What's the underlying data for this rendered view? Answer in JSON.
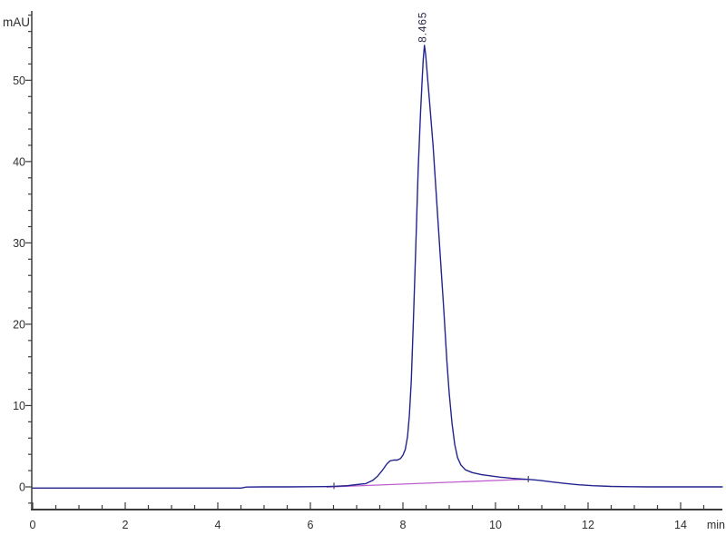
{
  "chart": {
    "y_unit": "mAU",
    "x_unit": "min"
  },
  "chart_data": {
    "type": "line",
    "title": "",
    "xlabel": "min",
    "ylabel": "mAU",
    "xlim": [
      0,
      14.9
    ],
    "ylim": [
      -2.8,
      58.5
    ],
    "x_ticks": [
      0,
      2,
      4,
      6,
      8,
      10,
      12,
      14
    ],
    "x_minor_step": 0.5,
    "y_ticks": [
      0,
      10,
      20,
      30,
      40,
      50
    ],
    "y_minor_step": 2,
    "grid": false,
    "legend": false,
    "colors": {
      "signal": "#23238f",
      "baseline": "#bf5fd0",
      "axis": "#3c3c3c",
      "tick_label": "#2f2f2f",
      "peak_label": "#23233f"
    },
    "peaks": [
      {
        "retention_time_min": 8.465,
        "label": "8.465",
        "height_mAU": 54.3
      }
    ],
    "integration_markers": [
      {
        "t": 6.51,
        "v": 0.07
      },
      {
        "t": 10.71,
        "v": 0.9
      }
    ],
    "series": [
      {
        "name": "uv-signal",
        "points": [
          [
            0,
            -0.15
          ],
          [
            1,
            -0.15
          ],
          [
            2,
            -0.15
          ],
          [
            3,
            -0.15
          ],
          [
            4,
            -0.15
          ],
          [
            4.5,
            -0.15
          ],
          [
            4.62,
            -0.02
          ],
          [
            5,
            0
          ],
          [
            5.5,
            0
          ],
          [
            6,
            0.02
          ],
          [
            6.3,
            0.03
          ],
          [
            6.51,
            0.07
          ],
          [
            6.8,
            0.15
          ],
          [
            7.0,
            0.28
          ],
          [
            7.2,
            0.4
          ],
          [
            7.35,
            0.8
          ],
          [
            7.45,
            1.3
          ],
          [
            7.55,
            2.0
          ],
          [
            7.65,
            2.8
          ],
          [
            7.72,
            3.2
          ],
          [
            7.8,
            3.3
          ],
          [
            7.88,
            3.3
          ],
          [
            7.95,
            3.5
          ],
          [
            8.0,
            3.9
          ],
          [
            8.05,
            4.6
          ],
          [
            8.1,
            6.2
          ],
          [
            8.14,
            8.8
          ],
          [
            8.18,
            13
          ],
          [
            8.23,
            21
          ],
          [
            8.28,
            30
          ],
          [
            8.33,
            39
          ],
          [
            8.38,
            46
          ],
          [
            8.42,
            50.5
          ],
          [
            8.44,
            52.6
          ],
          [
            8.465,
            54.3
          ],
          [
            8.49,
            53.2
          ],
          [
            8.53,
            50.5
          ],
          [
            8.58,
            47
          ],
          [
            8.65,
            42
          ],
          [
            8.72,
            36
          ],
          [
            8.8,
            29
          ],
          [
            8.88,
            22
          ],
          [
            8.95,
            15.5
          ],
          [
            9.0,
            11.5
          ],
          [
            9.06,
            7.8
          ],
          [
            9.12,
            5.2
          ],
          [
            9.18,
            3.6
          ],
          [
            9.25,
            2.7
          ],
          [
            9.35,
            2.1
          ],
          [
            9.5,
            1.75
          ],
          [
            9.7,
            1.5
          ],
          [
            9.9,
            1.35
          ],
          [
            10.1,
            1.2
          ],
          [
            10.35,
            1.05
          ],
          [
            10.6,
            0.95
          ],
          [
            10.75,
            0.9
          ],
          [
            10.95,
            0.8
          ],
          [
            11.2,
            0.62
          ],
          [
            11.5,
            0.42
          ],
          [
            11.8,
            0.26
          ],
          [
            12.1,
            0.14
          ],
          [
            12.5,
            0.06
          ],
          [
            12.9,
            0.02
          ],
          [
            13.3,
            0
          ],
          [
            14.0,
            0
          ],
          [
            14.9,
            0
          ]
        ]
      },
      {
        "name": "integration-baseline",
        "points": [
          [
            6.35,
            -0.02
          ],
          [
            10.73,
            0.95
          ]
        ]
      }
    ]
  }
}
